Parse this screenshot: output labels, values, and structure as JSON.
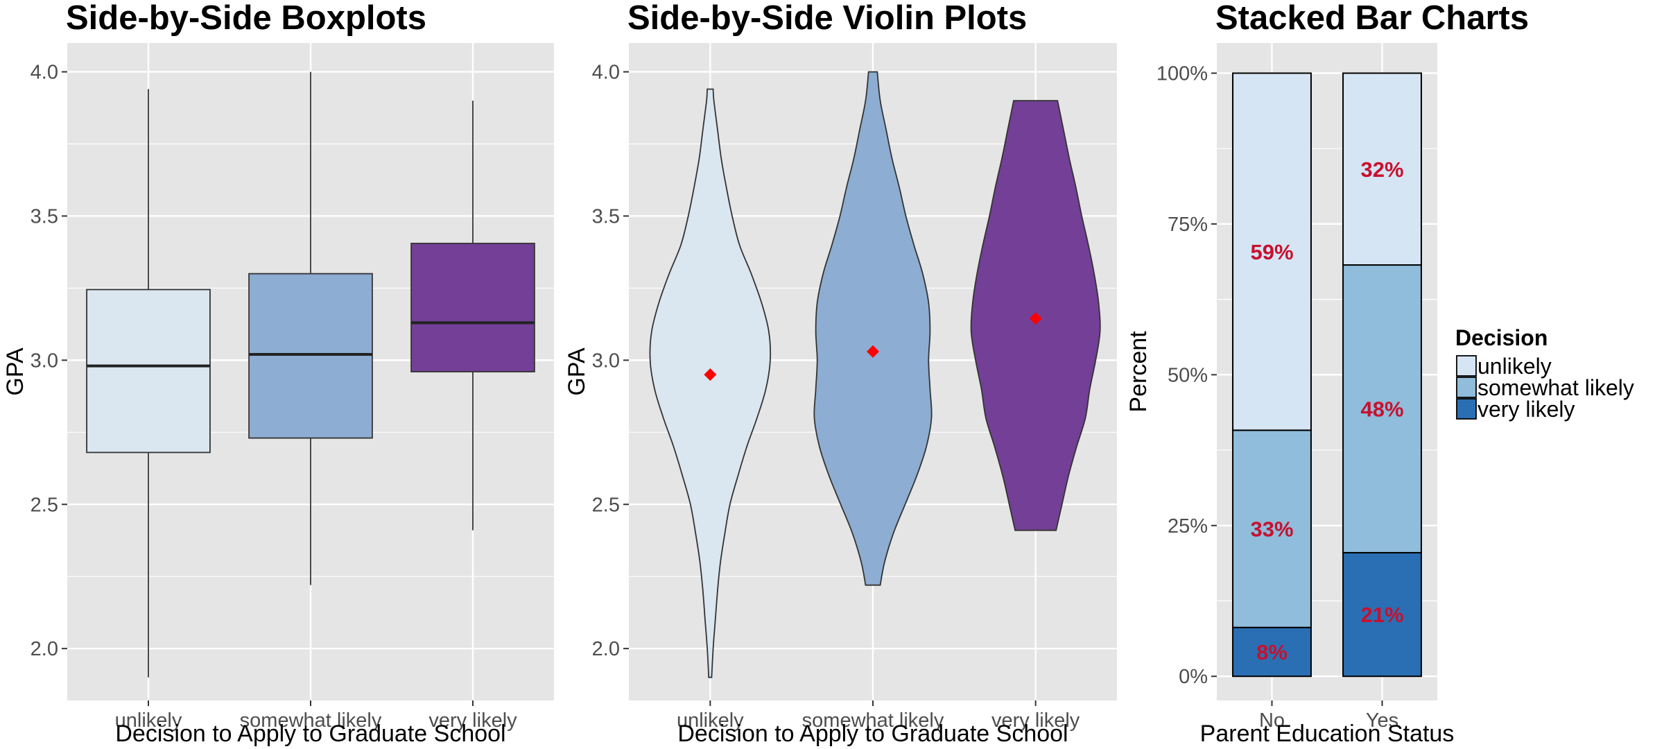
{
  "colors": {
    "panel_bg": "#e5e5e5",
    "grid": "#ffffff",
    "unlikely_box": "#dae6f0",
    "somewhat_likely_box": "#8dadd2",
    "very_likely_box": "#743f96",
    "unlikely_bar": "#d5e5f4",
    "somewhat_likely_bar": "#8fbddb",
    "very_likely_bar": "#2a6fb3",
    "mean_marker": "#ff0000",
    "data_label": "#c8102e"
  },
  "chart_data": [
    {
      "type": "boxplot",
      "title": "Side-by-Side Boxplots",
      "xlabel": "Decision to Apply to Graduate School",
      "ylabel": "GPA",
      "ylim": [
        1.82,
        4.1
      ],
      "yticks": [
        {
          "value": 2.0,
          "label": "2.0"
        },
        {
          "value": 2.5,
          "label": "2.5"
        },
        {
          "value": 3.0,
          "label": "3.0"
        },
        {
          "value": 3.5,
          "label": "3.5"
        },
        {
          "value": 4.0,
          "label": "4.0"
        }
      ],
      "categories": [
        "unlikely",
        "somewhat likely",
        "very likely"
      ],
      "boxes": [
        {
          "category": "unlikely",
          "min": 1.9,
          "q1": 2.68,
          "median": 2.98,
          "q3": 3.245,
          "max": 3.94,
          "color": "#dae6f0"
        },
        {
          "category": "somewhat likely",
          "min": 2.22,
          "q1": 2.73,
          "median": 3.02,
          "q3": 3.3,
          "max": 4.0,
          "color": "#8dadd2"
        },
        {
          "category": "very likely",
          "min": 2.41,
          "q1": 2.96,
          "median": 3.13,
          "q3": 3.405,
          "max": 3.9,
          "color": "#743f96"
        }
      ],
      "grid": true
    },
    {
      "type": "violin",
      "title": "Side-by-Side Violin Plots",
      "xlabel": "Decision to Apply to Graduate School",
      "ylabel": "GPA",
      "ylim": [
        1.82,
        4.1
      ],
      "yticks": [
        {
          "value": 2.0,
          "label": "2.0"
        },
        {
          "value": 2.5,
          "label": "2.5"
        },
        {
          "value": 3.0,
          "label": "3.0"
        },
        {
          "value": 3.5,
          "label": "3.5"
        },
        {
          "value": 4.0,
          "label": "4.0"
        }
      ],
      "categories": [
        "unlikely",
        "somewhat likely",
        "very likely"
      ],
      "violins": [
        {
          "category": "unlikely",
          "color": "#dae6f0",
          "mean": 2.95,
          "profile": [
            [
              1.9,
              0.02
            ],
            [
              2.0,
              0.04
            ],
            [
              2.1,
              0.07
            ],
            [
              2.2,
              0.1
            ],
            [
              2.3,
              0.14
            ],
            [
              2.4,
              0.2
            ],
            [
              2.5,
              0.27
            ],
            [
              2.6,
              0.38
            ],
            [
              2.7,
              0.5
            ],
            [
              2.8,
              0.64
            ],
            [
              2.9,
              0.76
            ],
            [
              3.0,
              0.82
            ],
            [
              3.1,
              0.8
            ],
            [
              3.2,
              0.7
            ],
            [
              3.3,
              0.56
            ],
            [
              3.4,
              0.4
            ],
            [
              3.5,
              0.3
            ],
            [
              3.6,
              0.22
            ],
            [
              3.7,
              0.15
            ],
            [
              3.8,
              0.1
            ],
            [
              3.9,
              0.05
            ],
            [
              3.94,
              0.04
            ]
          ]
        },
        {
          "category": "somewhat likely",
          "color": "#8dadd2",
          "mean": 3.03,
          "profile": [
            [
              2.22,
              0.1
            ],
            [
              2.3,
              0.16
            ],
            [
              2.4,
              0.28
            ],
            [
              2.5,
              0.44
            ],
            [
              2.6,
              0.6
            ],
            [
              2.7,
              0.73
            ],
            [
              2.8,
              0.8
            ],
            [
              2.9,
              0.78
            ],
            [
              3.0,
              0.76
            ],
            [
              3.1,
              0.78
            ],
            [
              3.2,
              0.76
            ],
            [
              3.3,
              0.68
            ],
            [
              3.4,
              0.56
            ],
            [
              3.5,
              0.45
            ],
            [
              3.6,
              0.36
            ],
            [
              3.7,
              0.26
            ],
            [
              3.8,
              0.18
            ],
            [
              3.9,
              0.1
            ],
            [
              4.0,
              0.06
            ]
          ]
        },
        {
          "category": "very likely",
          "color": "#743f96",
          "mean": 3.145,
          "profile": [
            [
              2.41,
              0.28
            ],
            [
              2.5,
              0.36
            ],
            [
              2.6,
              0.45
            ],
            [
              2.7,
              0.56
            ],
            [
              2.8,
              0.68
            ],
            [
              2.9,
              0.74
            ],
            [
              3.0,
              0.82
            ],
            [
              3.1,
              0.88
            ],
            [
              3.2,
              0.86
            ],
            [
              3.3,
              0.8
            ],
            [
              3.4,
              0.72
            ],
            [
              3.5,
              0.63
            ],
            [
              3.6,
              0.55
            ],
            [
              3.7,
              0.46
            ],
            [
              3.8,
              0.38
            ],
            [
              3.9,
              0.3
            ]
          ]
        }
      ],
      "grid": true
    },
    {
      "type": "bar",
      "stacked": true,
      "title": "Stacked Bar Charts",
      "xlabel": "Parent Education Status",
      "ylabel": "Percent",
      "ylim": [
        -0.04,
        1.05
      ],
      "yticks": [
        {
          "value": 0,
          "label": "0%"
        },
        {
          "value": 0.25,
          "label": "25%"
        },
        {
          "value": 0.5,
          "label": "50%"
        },
        {
          "value": 0.75,
          "label": "75%"
        },
        {
          "value": 1.0,
          "label": "100%"
        }
      ],
      "categories": [
        "No",
        "Yes"
      ],
      "series": [
        {
          "name": "unlikely",
          "values": [
            0.592,
            0.318
          ],
          "labels": [
            "59%",
            "32%"
          ],
          "color": "#d5e5f4"
        },
        {
          "name": "somewhat likely",
          "values": [
            0.327,
            0.477
          ],
          "labels": [
            "33%",
            "48%"
          ],
          "color": "#8fbddb"
        },
        {
          "name": "very likely",
          "values": [
            0.081,
            0.205
          ],
          "labels": [
            "8%",
            "21%"
          ],
          "color": "#2a6fb3"
        }
      ],
      "legend": {
        "title": "Decision",
        "position": "right"
      },
      "grid": true
    }
  ]
}
